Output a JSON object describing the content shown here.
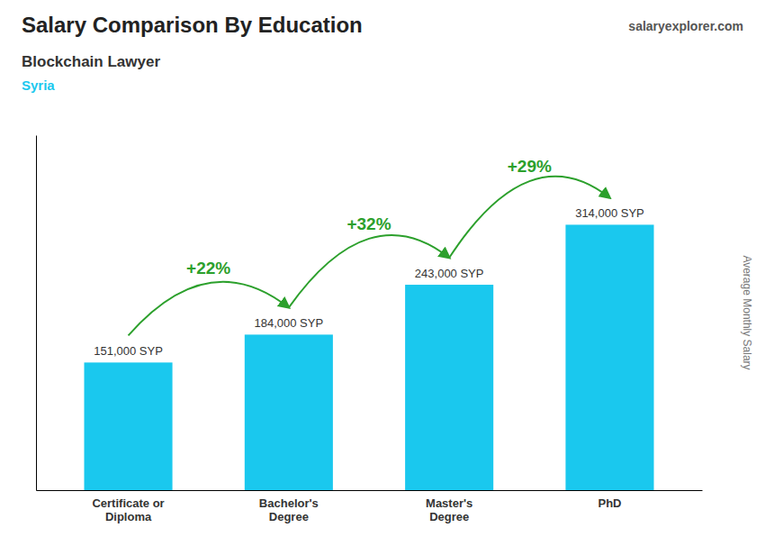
{
  "chart_data": {
    "type": "bar",
    "title": "Salary Comparison By Education",
    "subtitle": "Blockchain Lawyer",
    "country": "Syria",
    "website": "salaryexplorer.com",
    "ylabel": "Average Monthly Salary",
    "categories": [
      "Certificate or\nDiploma",
      "Bachelor's\nDegree",
      "Master's\nDegree",
      "PhD"
    ],
    "values": [
      151000,
      184000,
      243000,
      314000
    ],
    "value_labels": [
      "151,000 SYP",
      "184,000 SYP",
      "243,000 SYP",
      "314,000 SYP"
    ],
    "annotations": [
      "+22%",
      "+32%",
      "+29%"
    ],
    "color": "#1AC8EE",
    "ylim": [
      0,
      420000
    ],
    "data_labels": true,
    "tick_labels": "x",
    "grid": false
  }
}
